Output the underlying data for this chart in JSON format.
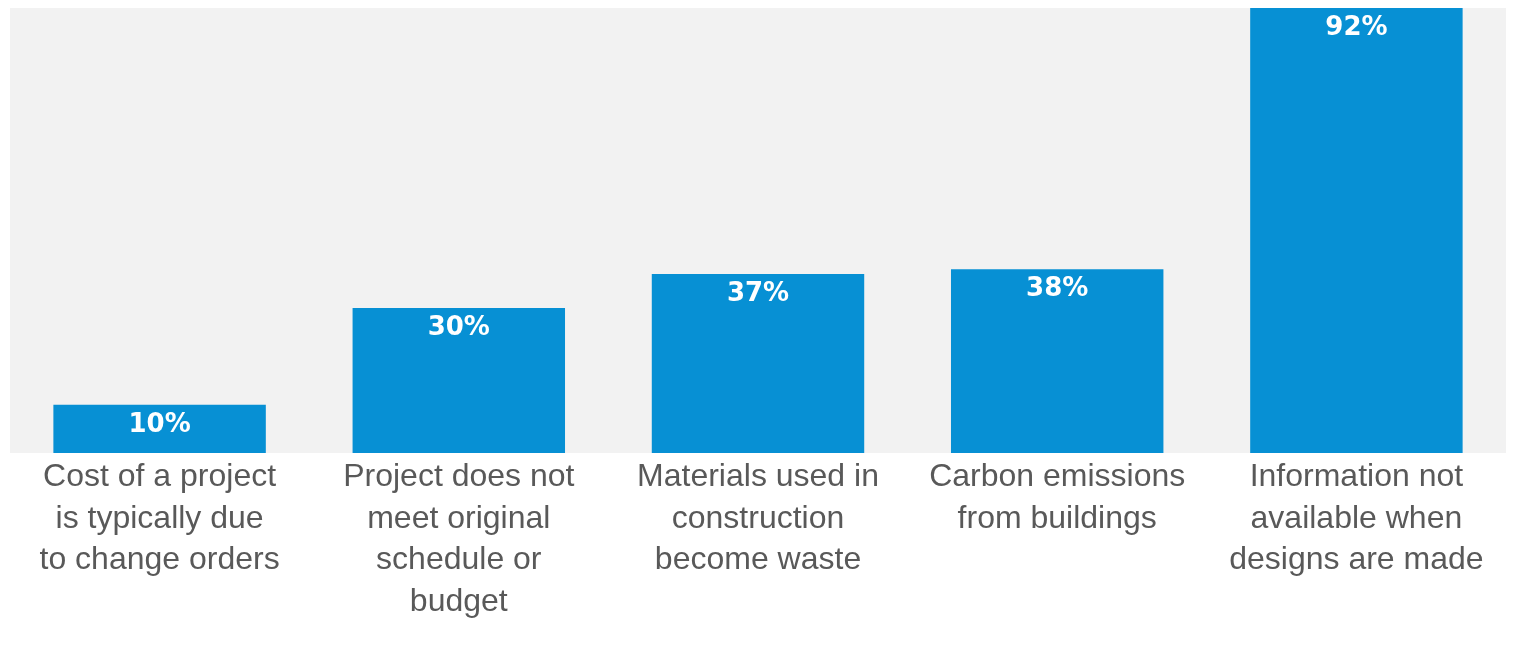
{
  "chart_data": {
    "type": "bar",
    "categories": [
      "Cost of a project is typically due to change orders",
      "Project does not meet original schedule or budget",
      "Materials used in construction become waste",
      "Carbon emissions from buildings",
      "Information not available when designs are made"
    ],
    "values": [
      10,
      30,
      37,
      38,
      92
    ],
    "value_labels": [
      "10%",
      "30%",
      "37%",
      "38%",
      "92%"
    ],
    "color": "#0790d4",
    "ylim": [
      0,
      92
    ],
    "tick_labels": "x"
  }
}
